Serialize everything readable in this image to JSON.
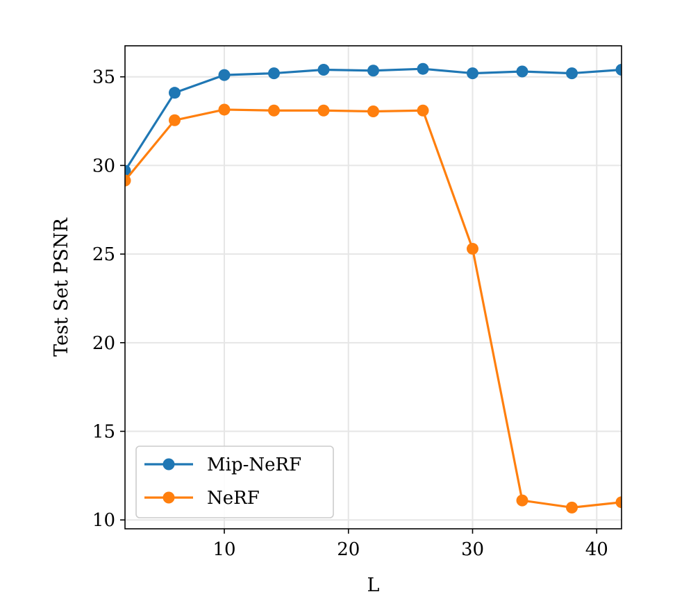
{
  "chart_data": {
    "type": "line",
    "title": "",
    "xlabel": "L",
    "ylabel": "Test Set PSNR",
    "xlim": [
      2,
      42
    ],
    "ylim": [
      9.5,
      36.75
    ],
    "xticks": [
      10,
      20,
      30,
      40
    ],
    "yticks": [
      10,
      15,
      20,
      25,
      30,
      35
    ],
    "grid": true,
    "legend_position": "lower-left",
    "x": [
      2,
      6,
      10,
      14,
      18,
      22,
      26,
      30,
      34,
      38,
      42
    ],
    "series": [
      {
        "name": "Mip-NeRF",
        "color": "#1f77b4",
        "marker": "circle",
        "values": [
          29.7,
          34.1,
          35.1,
          35.2,
          35.4,
          35.35,
          35.45,
          35.2,
          35.3,
          35.2,
          35.4
        ]
      },
      {
        "name": "NeRF",
        "color": "#ff7f0e",
        "marker": "circle",
        "values": [
          29.15,
          32.55,
          33.15,
          33.1,
          33.1,
          33.05,
          33.1,
          25.3,
          11.1,
          10.7,
          11.0
        ]
      }
    ]
  }
}
